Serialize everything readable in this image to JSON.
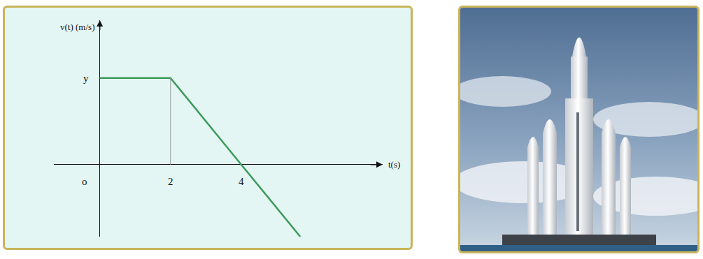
{
  "chart_data": {
    "type": "line",
    "x": [
      0,
      2,
      4,
      5.67
    ],
    "values": [
      2.4,
      2.4,
      0,
      -2.0
    ],
    "color": "#3a9a5a",
    "xlabel": "t(s)",
    "ylabel": "v(t) (m/s)",
    "xlim": [
      -1.3,
      8
    ],
    "ylim": [
      -2,
      4
    ],
    "xticks": [
      {
        "value": 0,
        "label": "o"
      },
      2,
      4
    ],
    "yticks": [
      {
        "value": 2.4,
        "label": "y"
      }
    ],
    "grid": false
  }
}
